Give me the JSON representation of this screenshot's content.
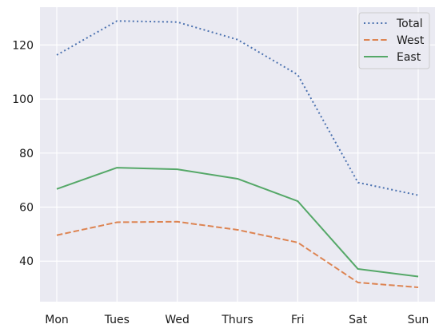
{
  "chart_data": {
    "type": "line",
    "title": "",
    "xlabel": "",
    "ylabel": "",
    "categories": [
      "Mon",
      "Tues",
      "Wed",
      "Thurs",
      "Fri",
      "Sat",
      "Sun"
    ],
    "ylim": [
      25,
      134
    ],
    "yticks": [
      40,
      60,
      80,
      100,
      120
    ],
    "grid": true,
    "legend_position": "top-right",
    "background_color": "#eaeaf2",
    "grid_color": "#ffffff",
    "series": [
      {
        "name": "Total",
        "style": "dotted",
        "color": "#4c72b0",
        "values": [
          116.3,
          128.9,
          128.5,
          122.0,
          109.0,
          69.1,
          64.4
        ]
      },
      {
        "name": "West",
        "style": "dashed",
        "color": "#dd8452",
        "values": [
          49.6,
          54.4,
          54.6,
          51.6,
          46.9,
          32.1,
          30.3
        ]
      },
      {
        "name": "East",
        "style": "solid",
        "color": "#55a868",
        "values": [
          66.7,
          74.6,
          74.0,
          70.5,
          62.2,
          37.1,
          34.3
        ]
      }
    ]
  }
}
